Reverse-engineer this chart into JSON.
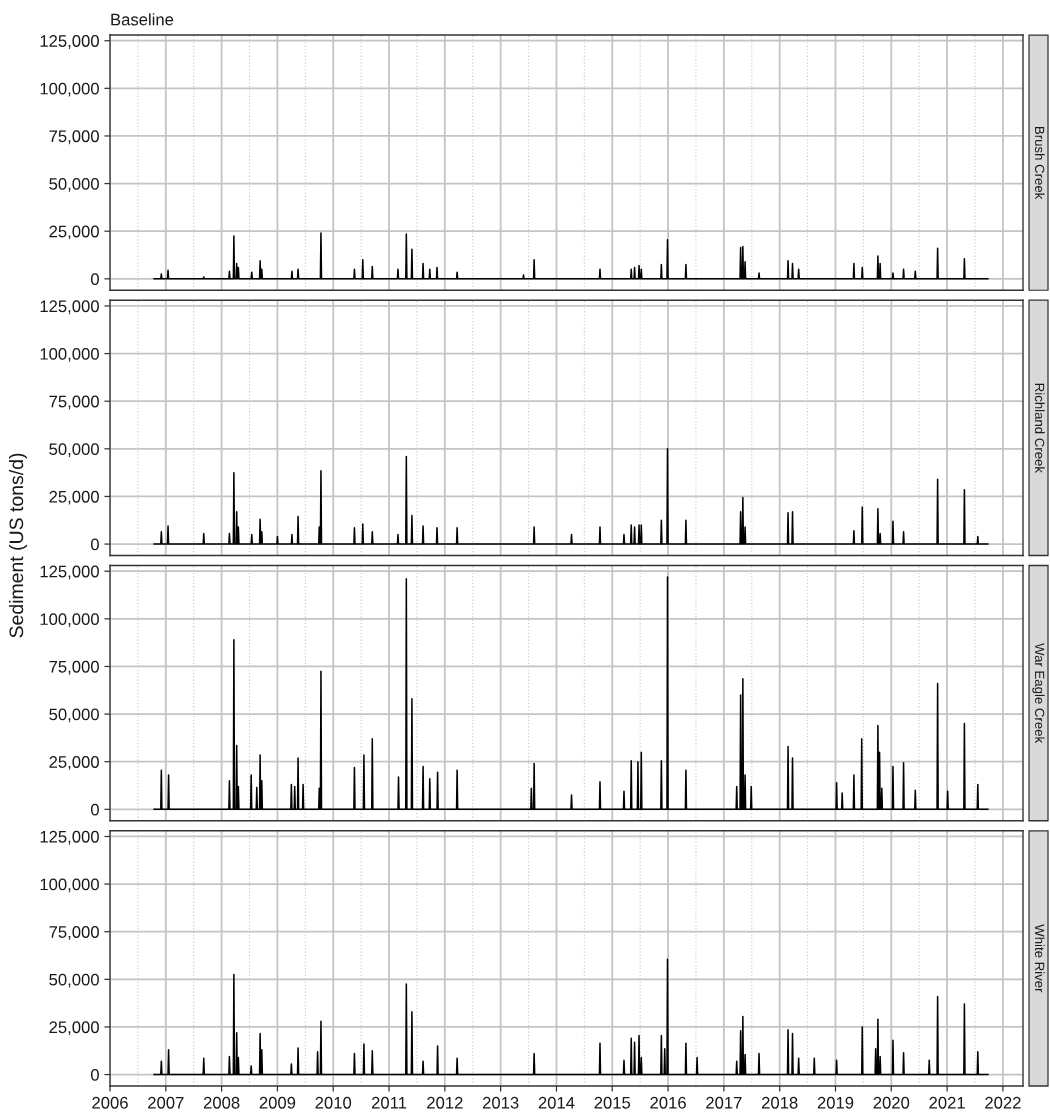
{
  "chart_data": [
    {
      "type": "line",
      "title": "Baseline",
      "tick_labels": "y",
      "grid": true,
      "line_style": "solid",
      "xlim": [
        2006.0,
        2022.36
      ],
      "xticks": [
        2006,
        2007,
        2008,
        2009,
        2010,
        2011,
        2012,
        2013,
        2014,
        2015,
        2016,
        2017,
        2018,
        2019,
        2020,
        2021,
        2022
      ],
      "ylim": [
        -6000,
        128000
      ],
      "yticks": [
        0,
        {
          "value": 25000,
          "label": "25,000"
        },
        {
          "value": 50000,
          "label": "50,000"
        },
        {
          "value": 75000,
          "label": "75,000"
        },
        {
          "value": 100000,
          "label": "100,000"
        },
        {
          "value": 125000,
          "label": "125,000"
        }
      ],
      "x": [
        2006.79,
        2006.91,
        2006.92,
        2006.93,
        2007.03,
        2007.04,
        2007.05,
        2007.67,
        2007.68,
        2007.69,
        2008.13,
        2008.14,
        2008.15,
        2008.21,
        2008.22,
        2008.23,
        2008.26,
        2008.27,
        2008.28,
        2008.29,
        2008.3,
        2008.31,
        2008.53,
        2008.54,
        2008.55,
        2008.68,
        2008.69,
        2008.7,
        2008.71,
        2008.72,
        2008.73,
        2009.25,
        2009.26,
        2009.27,
        2009.36,
        2009.37,
        2009.38,
        2009.77,
        2009.78,
        2009.79,
        2010.37,
        2010.38,
        2010.39,
        2010.52,
        2010.53,
        2010.54,
        2010.69,
        2010.7,
        2010.71,
        2011.15,
        2011.16,
        2011.17,
        2011.3,
        2011.31,
        2011.32,
        2011.4,
        2011.41,
        2011.42,
        2011.6,
        2011.61,
        2011.62,
        2011.72,
        2011.73,
        2011.74,
        2011.85,
        2011.86,
        2011.87,
        2012.21,
        2012.22,
        2012.23,
        2013.4,
        2013.41,
        2013.42,
        2013.59,
        2013.6,
        2013.61,
        2014.77,
        2014.78,
        2014.79,
        2015.33,
        2015.34,
        2015.35,
        2015.39,
        2015.4,
        2015.41,
        2015.47,
        2015.48,
        2015.49,
        2015.51,
        2015.52,
        2015.53,
        2015.87,
        2015.88,
        2015.89,
        2015.98,
        2015.99,
        2016.0,
        2016.31,
        2016.32,
        2016.33,
        2017.29,
        2017.3,
        2017.31,
        2017.33,
        2017.34,
        2017.35,
        2017.37,
        2017.38,
        2017.39,
        2017.62,
        2017.63,
        2017.64,
        2018.14,
        2018.15,
        2018.16,
        2018.22,
        2018.23,
        2018.24,
        2018.33,
        2018.34,
        2018.35,
        2019.32,
        2019.33,
        2019.34,
        2019.47,
        2019.48,
        2019.49,
        2019.75,
        2019.76,
        2019.77,
        2019.79,
        2019.8,
        2019.81,
        2020.02,
        2020.03,
        2020.04,
        2020.21,
        2020.22,
        2020.23,
        2020.42,
        2020.43,
        2020.44,
        2020.82,
        2020.83,
        2020.84,
        2021.3,
        2021.31,
        2021.32,
        2021.73
      ],
      "series": [
        {
          "name": "Brush Creek",
          "color": "#000000",
          "values": [
            0,
            0,
            2500,
            0,
            0,
            4500,
            0,
            0,
            1000,
            0,
            0,
            4000,
            0,
            0,
            22500,
            0,
            0,
            8000,
            0,
            0,
            6000,
            0,
            0,
            3500,
            0,
            0,
            9500,
            0,
            0,
            5000,
            0,
            0,
            4000,
            0,
            0,
            5000,
            0,
            0,
            24000,
            0,
            0,
            5000,
            0,
            0,
            10000,
            0,
            0,
            6500,
            0,
            0,
            5000,
            0,
            0,
            23500,
            0,
            0,
            15500,
            0,
            0,
            8000,
            0,
            0,
            5000,
            0,
            0,
            6000,
            0,
            0,
            3500,
            0,
            0,
            2000,
            0,
            0,
            10000,
            0,
            0,
            5000,
            0,
            0,
            5000,
            0,
            0,
            6000,
            0,
            0,
            7000,
            0,
            0,
            5000,
            0,
            0,
            7500,
            0,
            0,
            20500,
            0,
            0,
            7500,
            0,
            0,
            16500,
            0,
            0,
            17000,
            0,
            0,
            9000,
            0,
            0,
            3000,
            0,
            0,
            9500,
            0,
            0,
            8000,
            0,
            0,
            5000,
            0,
            0,
            8000,
            0,
            0,
            6000,
            0,
            0,
            12000,
            0,
            0,
            8000,
            0,
            0,
            3000,
            0,
            0,
            5000,
            0,
            0,
            4000,
            0,
            0,
            16000,
            0,
            0,
            10500,
            0,
            0
          ]
        }
      ]
    },
    {
      "type": "line",
      "ylabel": "Sediment (US tons/d)",
      "tick_labels": "y",
      "grid": true,
      "line_style": "solid",
      "xlim": [
        2006.0,
        2022.36
      ],
      "xticks": [
        2006,
        2007,
        2008,
        2009,
        2010,
        2011,
        2012,
        2013,
        2014,
        2015,
        2016,
        2017,
        2018,
        2019,
        2020,
        2021,
        2022
      ],
      "ylim": [
        -6000,
        128000
      ],
      "yticks": [
        0,
        {
          "value": 25000,
          "label": "25,000"
        },
        {
          "value": 50000,
          "label": "50,000"
        },
        {
          "value": 75000,
          "label": "75,000"
        },
        {
          "value": 100000,
          "label": "100,000"
        },
        {
          "value": 125000,
          "label": "125,000"
        }
      ],
      "x": [
        2006.79,
        2006.91,
        2006.92,
        2006.93,
        2007.03,
        2007.04,
        2007.05,
        2007.67,
        2007.68,
        2007.69,
        2008.13,
        2008.14,
        2008.15,
        2008.21,
        2008.22,
        2008.23,
        2008.26,
        2008.27,
        2008.28,
        2008.29,
        2008.3,
        2008.31,
        2008.53,
        2008.54,
        2008.55,
        2008.68,
        2008.69,
        2008.7,
        2008.71,
        2008.72,
        2008.73,
        2008.99,
        2009.0,
        2009.01,
        2009.25,
        2009.26,
        2009.27,
        2009.36,
        2009.37,
        2009.38,
        2009.74,
        2009.75,
        2009.76,
        2009.77,
        2009.78,
        2009.79,
        2010.37,
        2010.38,
        2010.39,
        2010.52,
        2010.53,
        2010.54,
        2010.69,
        2010.7,
        2010.71,
        2011.15,
        2011.16,
        2011.17,
        2011.3,
        2011.31,
        2011.32,
        2011.4,
        2011.41,
        2011.42,
        2011.6,
        2011.61,
        2011.62,
        2011.85,
        2011.86,
        2011.87,
        2012.21,
        2012.22,
        2012.23,
        2013.59,
        2013.6,
        2013.61,
        2014.26,
        2014.27,
        2014.28,
        2014.77,
        2014.78,
        2014.79,
        2015.2,
        2015.21,
        2015.22,
        2015.33,
        2015.34,
        2015.35,
        2015.39,
        2015.4,
        2015.41,
        2015.47,
        2015.48,
        2015.49,
        2015.51,
        2015.52,
        2015.53,
        2015.87,
        2015.88,
        2015.89,
        2015.98,
        2015.99,
        2016.0,
        2016.31,
        2016.32,
        2016.33,
        2017.29,
        2017.3,
        2017.31,
        2017.33,
        2017.34,
        2017.35,
        2017.37,
        2017.38,
        2017.39,
        2018.14,
        2018.15,
        2018.16,
        2018.22,
        2018.23,
        2018.24,
        2019.32,
        2019.33,
        2019.34,
        2019.47,
        2019.48,
        2019.49,
        2019.75,
        2019.76,
        2019.77,
        2019.79,
        2019.8,
        2019.81,
        2020.02,
        2020.03,
        2020.04,
        2020.21,
        2020.22,
        2020.23,
        2020.82,
        2020.83,
        2020.84,
        2021.3,
        2021.31,
        2021.32,
        2021.54,
        2021.55,
        2021.56,
        2021.73
      ],
      "series": [
        {
          "name": "Richland Creek",
          "color": "#000000",
          "values": [
            0,
            0,
            6500,
            0,
            0,
            9500,
            0,
            0,
            5500,
            0,
            0,
            5500,
            0,
            0,
            37500,
            0,
            0,
            17000,
            0,
            0,
            9000,
            0,
            0,
            5000,
            0,
            0,
            13000,
            0,
            0,
            6500,
            0,
            0,
            4000,
            0,
            0,
            5000,
            0,
            0,
            14500,
            0,
            0,
            9000,
            0,
            0,
            38500,
            0,
            0,
            8500,
            0,
            0,
            10500,
            0,
            0,
            6500,
            0,
            0,
            5000,
            0,
            0,
            46000,
            0,
            0,
            15000,
            0,
            0,
            9500,
            0,
            0,
            8500,
            0,
            0,
            8500,
            0,
            0,
            9000,
            0,
            0,
            5000,
            0,
            0,
            9000,
            0,
            0,
            5000,
            0,
            0,
            10000,
            0,
            0,
            9000,
            0,
            0,
            10000,
            0,
            0,
            10000,
            0,
            0,
            12500,
            0,
            0,
            50000,
            0,
            0,
            12500,
            0,
            0,
            17000,
            0,
            0,
            24500,
            0,
            0,
            9000,
            0,
            0,
            16500,
            0,
            0,
            17000,
            0,
            0,
            7000,
            0,
            0,
            19500,
            0,
            0,
            18500,
            0,
            0,
            5500,
            0,
            0,
            12000,
            0,
            0,
            6500,
            0,
            0,
            34000,
            0,
            0,
            28500,
            0,
            0,
            4000,
            0,
            0
          ]
        }
      ]
    },
    {
      "type": "line",
      "tick_labels": "y",
      "grid": true,
      "line_style": "solid",
      "xlim": [
        2006.0,
        2022.36
      ],
      "xticks": [
        2006,
        2007,
        2008,
        2009,
        2010,
        2011,
        2012,
        2013,
        2014,
        2015,
        2016,
        2017,
        2018,
        2019,
        2020,
        2021,
        2022
      ],
      "ylim": [
        -6000,
        128000
      ],
      "yticks": [
        0,
        {
          "value": 25000,
          "label": "25,000"
        },
        {
          "value": 50000,
          "label": "50,000"
        },
        {
          "value": 75000,
          "label": "75,000"
        },
        {
          "value": 100000,
          "label": "100,000"
        },
        {
          "value": 125000,
          "label": "125,000"
        }
      ],
      "x": [
        2006.79,
        2006.91,
        2006.92,
        2006.93,
        2007.04,
        2007.05,
        2007.06,
        2008.13,
        2008.14,
        2008.15,
        2008.21,
        2008.22,
        2008.23,
        2008.26,
        2008.27,
        2008.28,
        2008.29,
        2008.3,
        2008.31,
        2008.52,
        2008.53,
        2008.54,
        2008.62,
        2008.63,
        2008.64,
        2008.68,
        2008.69,
        2008.7,
        2008.71,
        2008.72,
        2008.73,
        2009.24,
        2009.25,
        2009.26,
        2009.3,
        2009.31,
        2009.32,
        2009.36,
        2009.37,
        2009.38,
        2009.45,
        2009.46,
        2009.47,
        2009.74,
        2009.75,
        2009.76,
        2009.77,
        2009.78,
        2009.79,
        2010.37,
        2010.38,
        2010.39,
        2010.54,
        2010.55,
        2010.56,
        2010.69,
        2010.7,
        2010.71,
        2011.16,
        2011.17,
        2011.18,
        2011.3,
        2011.31,
        2011.32,
        2011.4,
        2011.41,
        2011.42,
        2011.6,
        2011.61,
        2011.62,
        2011.72,
        2011.73,
        2011.74,
        2011.86,
        2011.87,
        2011.88,
        2012.21,
        2012.22,
        2012.23,
        2013.54,
        2013.55,
        2013.56,
        2013.59,
        2013.6,
        2013.61,
        2014.26,
        2014.27,
        2014.28,
        2014.77,
        2014.78,
        2014.79,
        2015.2,
        2015.21,
        2015.22,
        2015.33,
        2015.34,
        2015.35,
        2015.45,
        2015.46,
        2015.47,
        2015.51,
        2015.52,
        2015.53,
        2015.87,
        2015.88,
        2015.89,
        2015.98,
        2015.99,
        2016.0,
        2016.31,
        2016.32,
        2016.33,
        2017.22,
        2017.23,
        2017.24,
        2017.29,
        2017.3,
        2017.31,
        2017.33,
        2017.34,
        2017.35,
        2017.37,
        2017.38,
        2017.39,
        2017.48,
        2017.49,
        2017.5,
        2018.14,
        2018.15,
        2018.16,
        2018.22,
        2018.23,
        2018.24,
        2019.01,
        2019.02,
        2019.03,
        2019.11,
        2019.12,
        2019.13,
        2019.32,
        2019.33,
        2019.34,
        2019.46,
        2019.47,
        2019.48,
        2019.75,
        2019.76,
        2019.77,
        2019.78,
        2019.79,
        2019.8,
        2019.82,
        2019.83,
        2019.84,
        2020.02,
        2020.03,
        2020.04,
        2020.21,
        2020.22,
        2020.23,
        2020.42,
        2020.43,
        2020.44,
        2020.82,
        2020.83,
        2020.84,
        2021.0,
        2021.01,
        2021.02,
        2021.3,
        2021.31,
        2021.32,
        2021.54,
        2021.55,
        2021.56,
        2021.73
      ],
      "series": [
        {
          "name": "War Eagle Creek",
          "color": "#000000",
          "values": [
            0,
            0,
            20500,
            0,
            0,
            18000,
            0,
            0,
            15000,
            0,
            0,
            89000,
            0,
            0,
            33500,
            0,
            0,
            12000,
            0,
            0,
            18000,
            0,
            0,
            11500,
            0,
            0,
            28500,
            0,
            0,
            15000,
            0,
            0,
            13000,
            0,
            0,
            12000,
            0,
            0,
            27000,
            0,
            0,
            13000,
            0,
            0,
            11000,
            0,
            0,
            72500,
            0,
            0,
            22000,
            0,
            0,
            28500,
            0,
            0,
            37000,
            0,
            0,
            17000,
            0,
            0,
            121000,
            0,
            0,
            58000,
            0,
            0,
            22500,
            0,
            0,
            16000,
            0,
            0,
            19500,
            0,
            0,
            20500,
            0,
            0,
            11000,
            0,
            0,
            24000,
            0,
            0,
            7500,
            0,
            0,
            14500,
            0,
            0,
            9500,
            0,
            0,
            25500,
            0,
            0,
            25000,
            0,
            0,
            30000,
            0,
            0,
            25500,
            0,
            0,
            122000,
            0,
            0,
            20500,
            0,
            0,
            12000,
            0,
            0,
            60000,
            0,
            0,
            68500,
            0,
            0,
            18000,
            0,
            0,
            12000,
            0,
            0,
            33000,
            0,
            0,
            27000,
            0,
            0,
            14000,
            0,
            0,
            8500,
            0,
            0,
            18000,
            0,
            0,
            37000,
            0,
            0,
            44000,
            0,
            0,
            30000,
            0,
            0,
            11000,
            0,
            0,
            22500,
            0,
            0,
            24500,
            0,
            0,
            10000,
            0,
            0,
            66000,
            0,
            0,
            9500,
            0,
            0,
            45000,
            0,
            0,
            13000,
            0,
            0
          ]
        }
      ]
    },
    {
      "type": "line",
      "grid": true,
      "line_style": "solid",
      "xlim": [
        2006.0,
        2022.36
      ],
      "xticks": [
        2006,
        2007,
        2008,
        2009,
        2010,
        2011,
        2012,
        2013,
        2014,
        2015,
        2016,
        2017,
        2018,
        2019,
        2020,
        2021,
        2022
      ],
      "ylim": [
        -6000,
        128000
      ],
      "yticks": [
        0,
        {
          "value": 25000,
          "label": "25,000"
        },
        {
          "value": 50000,
          "label": "50,000"
        },
        {
          "value": 75000,
          "label": "75,000"
        },
        {
          "value": 100000,
          "label": "100,000"
        },
        {
          "value": 125000,
          "label": "125,000"
        }
      ],
      "x": [
        2006.79,
        2006.91,
        2006.92,
        2006.93,
        2007.04,
        2007.05,
        2007.06,
        2007.67,
        2007.68,
        2007.69,
        2008.13,
        2008.14,
        2008.15,
        2008.21,
        2008.22,
        2008.23,
        2008.26,
        2008.27,
        2008.28,
        2008.29,
        2008.3,
        2008.31,
        2008.52,
        2008.53,
        2008.54,
        2008.68,
        2008.69,
        2008.7,
        2008.71,
        2008.72,
        2008.73,
        2009.24,
        2009.25,
        2009.26,
        2009.36,
        2009.37,
        2009.38,
        2009.71,
        2009.72,
        2009.73,
        2009.77,
        2009.78,
        2009.79,
        2010.37,
        2010.38,
        2010.39,
        2010.54,
        2010.55,
        2010.56,
        2010.69,
        2010.7,
        2010.71,
        2011.3,
        2011.31,
        2011.32,
        2011.4,
        2011.41,
        2011.42,
        2011.6,
        2011.61,
        2011.62,
        2011.86,
        2011.87,
        2011.88,
        2012.21,
        2012.22,
        2012.23,
        2013.59,
        2013.6,
        2013.61,
        2014.77,
        2014.78,
        2014.79,
        2015.2,
        2015.21,
        2015.22,
        2015.33,
        2015.34,
        2015.35,
        2015.39,
        2015.4,
        2015.41,
        2015.47,
        2015.48,
        2015.49,
        2015.51,
        2015.52,
        2015.53,
        2015.87,
        2015.88,
        2015.89,
        2015.93,
        2015.94,
        2015.95,
        2015.98,
        2015.99,
        2016.0,
        2016.31,
        2016.32,
        2016.33,
        2016.51,
        2016.52,
        2016.53,
        2017.22,
        2017.23,
        2017.24,
        2017.29,
        2017.3,
        2017.31,
        2017.33,
        2017.34,
        2017.35,
        2017.37,
        2017.38,
        2017.39,
        2017.62,
        2017.63,
        2017.64,
        2018.14,
        2018.15,
        2018.16,
        2018.22,
        2018.23,
        2018.24,
        2018.33,
        2018.34,
        2018.35,
        2018.61,
        2018.62,
        2018.63,
        2019.01,
        2019.02,
        2019.03,
        2019.47,
        2019.48,
        2019.49,
        2019.71,
        2019.72,
        2019.73,
        2019.75,
        2019.76,
        2019.77,
        2019.79,
        2019.8,
        2019.81,
        2020.02,
        2020.03,
        2020.04,
        2020.21,
        2020.22,
        2020.23,
        2020.67,
        2020.68,
        2020.69,
        2020.82,
        2020.83,
        2020.84,
        2021.3,
        2021.31,
        2021.32,
        2021.54,
        2021.55,
        2021.56,
        2021.73
      ],
      "series": [
        {
          "name": "White River",
          "color": "#000000",
          "values": [
            0,
            0,
            7000,
            0,
            0,
            13000,
            0,
            0,
            8500,
            0,
            0,
            9500,
            0,
            0,
            52500,
            0,
            0,
            22000,
            0,
            0,
            9000,
            0,
            0,
            4500,
            0,
            0,
            21500,
            0,
            0,
            13000,
            0,
            0,
            5500,
            0,
            0,
            14000,
            0,
            0,
            12000,
            0,
            0,
            28000,
            0,
            0,
            11000,
            0,
            0,
            16000,
            0,
            0,
            12500,
            0,
            0,
            47500,
            0,
            0,
            33000,
            0,
            0,
            7000,
            0,
            0,
            15000,
            0,
            0,
            8500,
            0,
            0,
            11000,
            0,
            0,
            16500,
            0,
            0,
            7500,
            0,
            0,
            19000,
            0,
            0,
            17000,
            0,
            0,
            20500,
            0,
            0,
            9000,
            0,
            0,
            20500,
            0,
            0,
            13500,
            0,
            0,
            60500,
            0,
            0,
            16500,
            0,
            0,
            9000,
            0,
            0,
            7000,
            0,
            0,
            23000,
            0,
            0,
            30500,
            0,
            0,
            10500,
            0,
            0,
            11000,
            0,
            0,
            23500,
            0,
            0,
            21500,
            0,
            0,
            8500,
            0,
            0,
            8500,
            0,
            0,
            7500,
            0,
            0,
            25000,
            0,
            0,
            13500,
            0,
            0,
            29000,
            0,
            0,
            9500,
            0,
            0,
            18000,
            0,
            0,
            11500,
            0,
            0,
            7500,
            0,
            0,
            41000,
            0,
            0,
            37000,
            0,
            0,
            12000,
            0,
            0
          ]
        }
      ]
    }
  ]
}
